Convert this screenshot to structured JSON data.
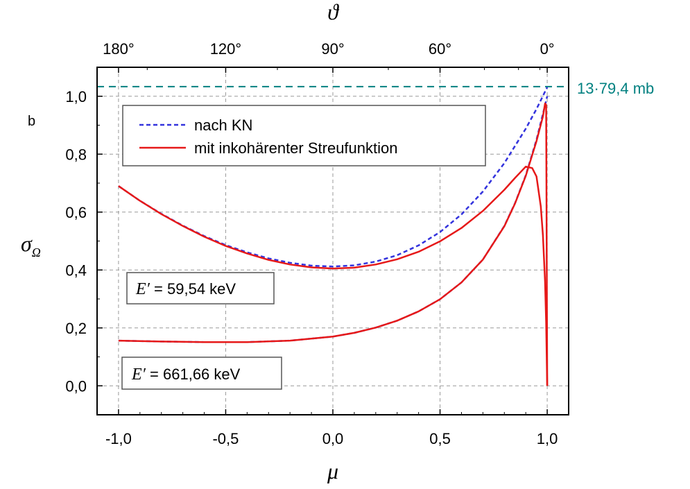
{
  "chart_data": {
    "type": "line",
    "xlabel": "μ",
    "ylabel": "σ",
    "ylabel_sub": "Ω",
    "y_unit": "b",
    "top_xlabel": "ϑ",
    "xlim": [
      -1.1,
      1.1
    ],
    "ylim": [
      -0.1,
      1.1
    ],
    "x_ticks": [
      -1.0,
      -0.5,
      0.0,
      0.5,
      1.0
    ],
    "x_tick_labels": [
      "-1,0",
      "-0,5",
      "0,0",
      "0,5",
      "1,0"
    ],
    "y_ticks": [
      0.0,
      0.2,
      0.4,
      0.6,
      0.8,
      1.0
    ],
    "y_tick_labels": [
      "0,0",
      "0,2",
      "0,4",
      "0,6",
      "0,8",
      "1,0"
    ],
    "top_ticks_deg": [
      180,
      120,
      90,
      60,
      0
    ],
    "top_tick_labels": [
      "180°",
      "120°",
      "90°",
      "60°",
      "0°"
    ],
    "grid": true,
    "legend_position": "top-left",
    "legend": [
      {
        "label": "nach KN",
        "color": "#3333dd",
        "style": "dashed"
      },
      {
        "label": "mit inkohärenter Streufunktion",
        "color": "#e61919",
        "style": "solid"
      }
    ],
    "reference_line": {
      "y": 1.0332,
      "label": "13·79,4 mb",
      "color": "#008080",
      "style": "dashed"
    },
    "annotations": [
      {
        "var": "E′",
        "text": " = 59,54 keV",
        "x": -0.81,
        "y": 0.34
      },
      {
        "var": "E′",
        "text": " = 661,66 keV",
        "x": -0.81,
        "y": 0.03
      }
    ],
    "series": [
      {
        "group": "E′ = 59,54 keV",
        "color": "#3333dd",
        "style": "dashed",
        "x": [
          -1.0,
          -0.9,
          -0.8,
          -0.7,
          -0.6,
          -0.5,
          -0.4,
          -0.3,
          -0.2,
          -0.1,
          0.0,
          0.1,
          0.2,
          0.3,
          0.4,
          0.5,
          0.6,
          0.7,
          0.8,
          0.9,
          0.95,
          1.0
        ],
        "y": [
          0.69,
          0.639,
          0.594,
          0.553,
          0.517,
          0.486,
          0.461,
          0.44,
          0.425,
          0.415,
          0.412,
          0.416,
          0.429,
          0.451,
          0.485,
          0.531,
          0.592,
          0.671,
          0.769,
          0.888,
          0.956,
          1.031
        ]
      },
      {
        "group": "E′ = 59,54 keV",
        "color": "#e61919",
        "style": "solid",
        "x": [
          -1.0,
          -0.9,
          -0.8,
          -0.7,
          -0.6,
          -0.5,
          -0.4,
          -0.3,
          -0.2,
          -0.1,
          0.0,
          0.1,
          0.2,
          0.3,
          0.4,
          0.5,
          0.6,
          0.7,
          0.8,
          0.85,
          0.9,
          0.93,
          0.95,
          0.97,
          0.98,
          0.99,
          0.995,
          1.0
        ],
        "y": [
          0.69,
          0.639,
          0.593,
          0.552,
          0.515,
          0.483,
          0.457,
          0.435,
          0.419,
          0.409,
          0.405,
          0.408,
          0.419,
          0.437,
          0.463,
          0.499,
          0.545,
          0.604,
          0.677,
          0.718,
          0.757,
          0.752,
          0.723,
          0.62,
          0.52,
          0.36,
          0.22,
          0.0
        ]
      },
      {
        "group": "E′ = 661,66 keV",
        "color": "#3333dd",
        "style": "dashed",
        "x": [
          -1.0,
          -0.8,
          -0.6,
          -0.4,
          -0.2,
          0.0,
          0.1,
          0.2,
          0.3,
          0.4,
          0.5,
          0.6,
          0.7,
          0.8,
          0.85,
          0.9,
          0.95,
          0.98,
          1.0
        ],
        "y": [
          0.156,
          0.153,
          0.151,
          0.151,
          0.156,
          0.17,
          0.183,
          0.201,
          0.225,
          0.257,
          0.299,
          0.357,
          0.436,
          0.552,
          0.631,
          0.727,
          0.85,
          0.939,
          1.0
        ]
      },
      {
        "group": "E′ = 661,66 keV",
        "color": "#e61919",
        "style": "solid",
        "x": [
          -1.0,
          -0.8,
          -0.6,
          -0.4,
          -0.2,
          0.0,
          0.1,
          0.2,
          0.3,
          0.4,
          0.5,
          0.6,
          0.7,
          0.8,
          0.85,
          0.9,
          0.95,
          0.98,
          0.99,
          0.995,
          1.0
        ],
        "y": [
          0.156,
          0.153,
          0.151,
          0.151,
          0.156,
          0.17,
          0.183,
          0.201,
          0.225,
          0.257,
          0.299,
          0.357,
          0.436,
          0.551,
          0.63,
          0.725,
          0.845,
          0.93,
          0.975,
          0.97,
          0.0
        ]
      }
    ]
  }
}
